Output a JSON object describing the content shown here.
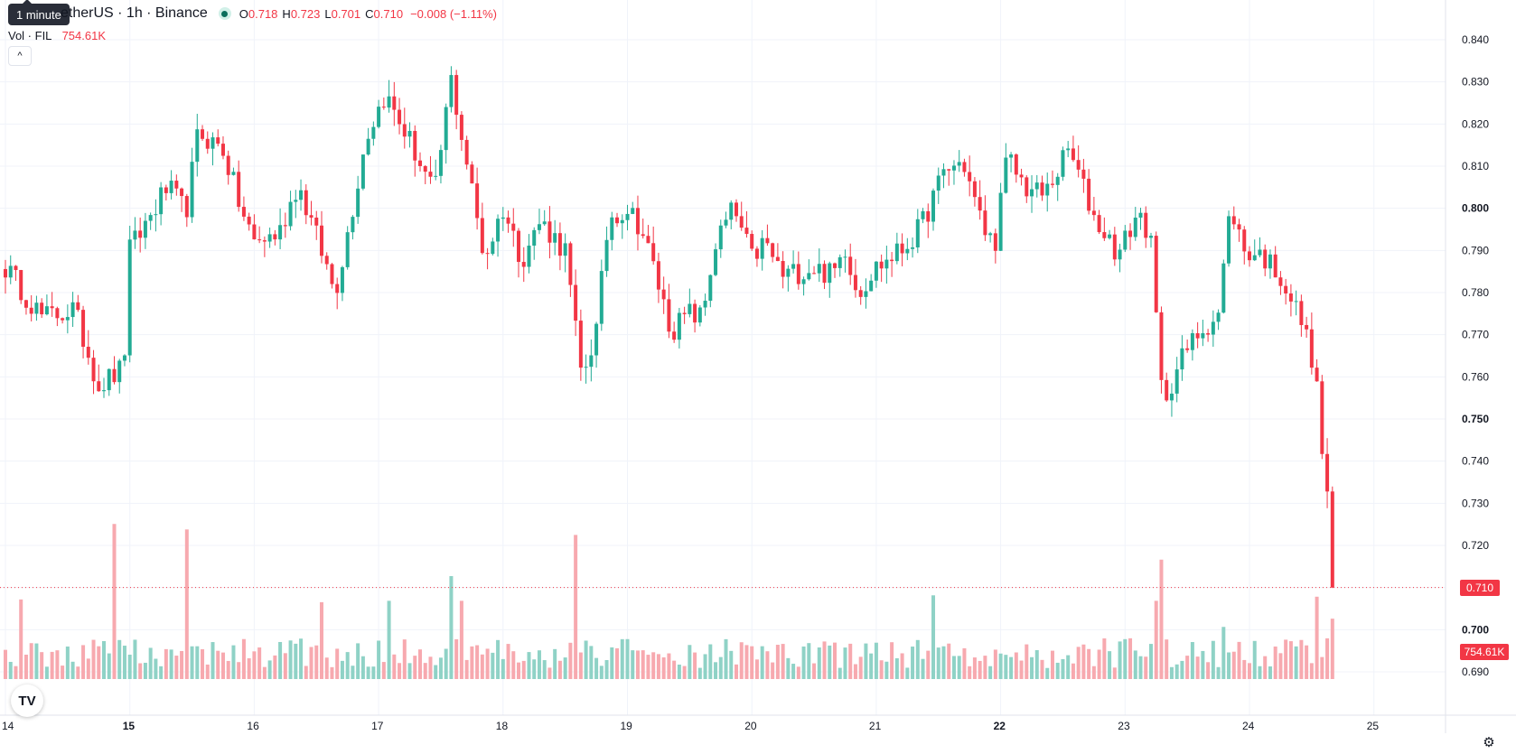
{
  "legend": {
    "symbol": "etherUS · 1h · Binance",
    "open_key": "O",
    "open": "0.718",
    "high_key": "H",
    "high": "0.723",
    "low_key": "L",
    "low": "0.701",
    "close_key": "C",
    "close": "0.710",
    "change": "−0.008 (−1.11%)"
  },
  "tooltip": "1 minute",
  "volume": {
    "label": "Vol · FIL",
    "value": "754.61K"
  },
  "collapse_glyph": "^",
  "price_tag": "0.710",
  "volume_tag": "754.61K",
  "logo_text": "TV",
  "gear_glyph": "⚙",
  "colors": {
    "up": "#22ab94",
    "down": "#f23645",
    "up_vol": "#8fd2c6",
    "down_vol": "#f7a9af",
    "grid": "#f0f3fa"
  },
  "chart_data": {
    "type": "candlestick",
    "interval": "1h",
    "exchange": "Binance",
    "price_axis": {
      "range": [
        0.685,
        0.845
      ],
      "ticks": [
        "0.840",
        "0.830",
        "0.820",
        "0.810",
        "0.800",
        "0.790",
        "0.780",
        "0.770",
        "0.760",
        "0.750",
        "0.740",
        "0.730",
        "0.720",
        "0.710",
        "0.700",
        "0.690"
      ]
    },
    "time_axis": {
      "range": [
        14,
        25
      ],
      "ticks": [
        "14",
        "15",
        "16",
        "17",
        "18",
        "19",
        "20",
        "21",
        "22",
        "23",
        "24",
        "25"
      ]
    },
    "last_price": 0.71,
    "volume_axis": {
      "range": [
        0,
        1250
      ]
    },
    "anchors": [
      [
        14.0,
        0.786
      ],
      [
        14.3,
        0.774
      ],
      [
        14.55,
        0.776
      ],
      [
        14.75,
        0.758
      ],
      [
        14.95,
        0.762
      ],
      [
        15.0,
        0.79
      ],
      [
        15.3,
        0.805
      ],
      [
        15.45,
        0.799
      ],
      [
        15.55,
        0.818
      ],
      [
        15.75,
        0.814
      ],
      [
        15.9,
        0.799
      ],
      [
        16.0,
        0.792
      ],
      [
        16.2,
        0.794
      ],
      [
        16.35,
        0.806
      ],
      [
        16.55,
        0.789
      ],
      [
        16.65,
        0.78
      ],
      [
        16.75,
        0.794
      ],
      [
        16.9,
        0.817
      ],
      [
        17.05,
        0.827
      ],
      [
        17.25,
        0.816
      ],
      [
        17.45,
        0.803
      ],
      [
        17.58,
        0.831
      ],
      [
        17.72,
        0.809
      ],
      [
        17.85,
        0.788
      ],
      [
        18.0,
        0.8
      ],
      [
        18.15,
        0.788
      ],
      [
        18.3,
        0.797
      ],
      [
        18.5,
        0.79
      ],
      [
        18.63,
        0.76
      ],
      [
        18.75,
        0.771
      ],
      [
        18.85,
        0.798
      ],
      [
        19.0,
        0.8
      ],
      [
        19.1,
        0.796
      ],
      [
        19.2,
        0.787
      ],
      [
        19.35,
        0.771
      ],
      [
        19.5,
        0.775
      ],
      [
        19.6,
        0.774
      ],
      [
        19.7,
        0.791
      ],
      [
        19.85,
        0.8
      ],
      [
        20.0,
        0.788
      ],
      [
        20.1,
        0.792
      ],
      [
        20.25,
        0.784
      ],
      [
        20.5,
        0.786
      ],
      [
        20.65,
        0.784
      ],
      [
        20.75,
        0.791
      ],
      [
        20.85,
        0.78
      ],
      [
        21.0,
        0.786
      ],
      [
        21.2,
        0.79
      ],
      [
        21.35,
        0.795
      ],
      [
        21.55,
        0.809
      ],
      [
        21.7,
        0.811
      ],
      [
        21.85,
        0.796
      ],
      [
        21.95,
        0.791
      ],
      [
        22.05,
        0.812
      ],
      [
        22.2,
        0.805
      ],
      [
        22.35,
        0.803
      ],
      [
        22.55,
        0.814
      ],
      [
        22.75,
        0.798
      ],
      [
        22.95,
        0.789
      ],
      [
        23.1,
        0.799
      ],
      [
        23.2,
        0.794
      ],
      [
        23.3,
        0.754
      ],
      [
        23.45,
        0.764
      ],
      [
        23.6,
        0.771
      ],
      [
        23.75,
        0.775
      ],
      [
        23.85,
        0.801
      ],
      [
        23.95,
        0.79
      ],
      [
        24.1,
        0.789
      ],
      [
        24.25,
        0.784
      ],
      [
        24.42,
        0.773
      ],
      [
        24.52,
        0.763
      ],
      [
        24.6,
        0.738
      ],
      [
        24.7,
        0.71
      ]
    ],
    "volume_spikes": [
      [
        14.12,
        580
      ],
      [
        14.86,
        1130
      ],
      [
        15.46,
        1090
      ],
      [
        16.56,
        560
      ],
      [
        17.1,
        570
      ],
      [
        17.6,
        750
      ],
      [
        17.67,
        570
      ],
      [
        18.59,
        1050
      ],
      [
        21.44,
        610
      ],
      [
        23.24,
        570
      ],
      [
        23.31,
        870
      ],
      [
        23.81,
        380
      ],
      [
        24.55,
        600
      ],
      [
        24.68,
        480
      ]
    ]
  }
}
